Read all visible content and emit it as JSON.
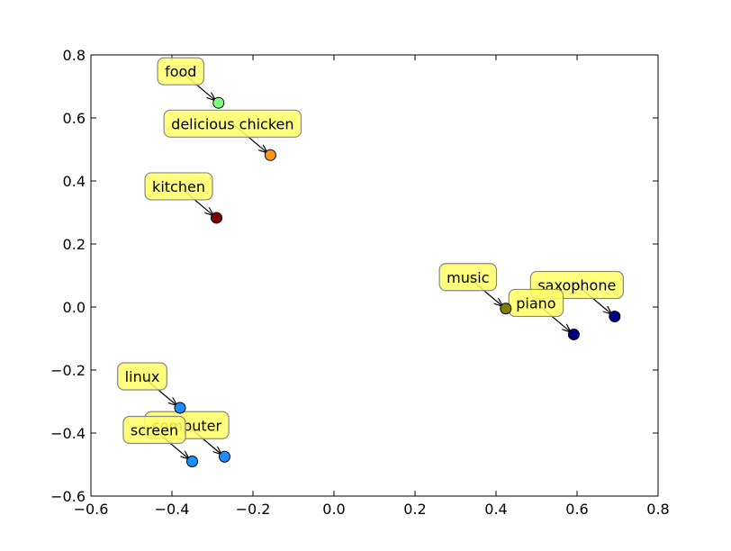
{
  "chart_data": {
    "type": "scatter",
    "title": "",
    "xlabel": "",
    "ylabel": "",
    "xlim": [
      -0.6,
      0.8
    ],
    "ylim": [
      -0.6,
      0.8
    ],
    "grid": false,
    "x_ticks": [
      "−0.6",
      "−0.4",
      "−0.2",
      "0.0",
      "0.2",
      "0.4",
      "0.6",
      "0.8"
    ],
    "y_ticks": [
      "−0.6",
      "−0.4",
      "−0.2",
      "0.0",
      "0.2",
      "0.4",
      "0.6",
      "0.8"
    ],
    "points": [
      {
        "label": "food",
        "x": -0.285,
        "y": 0.648,
        "color": "#7cff79"
      },
      {
        "label": "delicious chicken",
        "x": -0.157,
        "y": 0.482,
        "color": "#ff9410"
      },
      {
        "label": "kitchen",
        "x": -0.29,
        "y": 0.283,
        "color": "#800000"
      },
      {
        "label": "music",
        "x": 0.424,
        "y": -0.005,
        "color": "#808000"
      },
      {
        "label": "saxophone",
        "x": 0.693,
        "y": -0.03,
        "color": "#000080"
      },
      {
        "label": "piano",
        "x": 0.592,
        "y": -0.087,
        "color": "#000080"
      },
      {
        "label": "linux",
        "x": -0.38,
        "y": -0.32,
        "color": "#1c8cff"
      },
      {
        "label": "computer",
        "x": -0.27,
        "y": -0.475,
        "color": "#1c8cff"
      },
      {
        "label": "screen",
        "x": -0.35,
        "y": -0.49,
        "color": "#1c8cff"
      }
    ],
    "annotation_style": {
      "box_color": "#ffff66",
      "box_edge": "#888888"
    }
  }
}
